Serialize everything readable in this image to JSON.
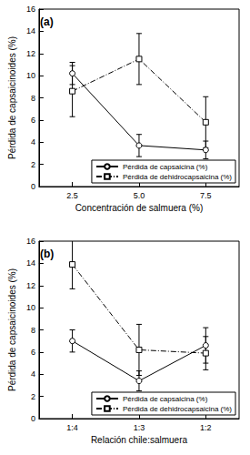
{
  "chart_data": [
    {
      "type": "line",
      "title": "(a)",
      "x_label": "Concentración de salmuera (%)",
      "y_label": "Pérdida de capsaicinoides (%)",
      "categories": [
        "2.5",
        "5.0",
        "7.5"
      ],
      "series": [
        {
          "name": "Pérdida de capsaicina (%)",
          "color": "#000000",
          "marker": "circle",
          "line_style": "solid",
          "values": [
            10.2,
            3.7,
            3.3
          ],
          "errors": [
            1.0,
            1.0,
            0.8
          ]
        },
        {
          "name": "Pérdida de dehidrocapsaicina (%)",
          "color": "#000000",
          "marker": "square",
          "line_style": "dashdot",
          "values": [
            8.6,
            11.5,
            5.8
          ],
          "errors": [
            2.3,
            2.3,
            2.3
          ]
        }
      ],
      "ylim": [
        0,
        16
      ],
      "yticks": [
        0,
        2,
        4,
        6,
        8,
        10,
        12,
        14,
        16
      ],
      "grid": false,
      "legend": "lower right"
    },
    {
      "type": "line",
      "title": "(b)",
      "x_label": "Relación chile:salmuera",
      "y_label": "Pérdida de capsaicinoides (%)",
      "categories": [
        "1:4",
        "1:3",
        "1:2"
      ],
      "series": [
        {
          "name": "Pérdida de capsaicina (%)",
          "color": "#000000",
          "marker": "circle",
          "line_style": "solid",
          "values": [
            7.0,
            3.4,
            6.6
          ],
          "errors": [
            1.0,
            0.9,
            1.6
          ]
        },
        {
          "name": "Pérdida de dehidrocapsaicina (%)",
          "color": "#000000",
          "marker": "square",
          "line_style": "dashdot",
          "values": [
            13.9,
            6.2,
            5.9
          ],
          "errors": [
            2.2,
            2.3,
            1.5
          ]
        }
      ],
      "ylim": [
        0,
        16
      ],
      "yticks": [
        0,
        2,
        4,
        6,
        8,
        10,
        12,
        14,
        16
      ],
      "grid": false,
      "legend": "lower right"
    }
  ]
}
